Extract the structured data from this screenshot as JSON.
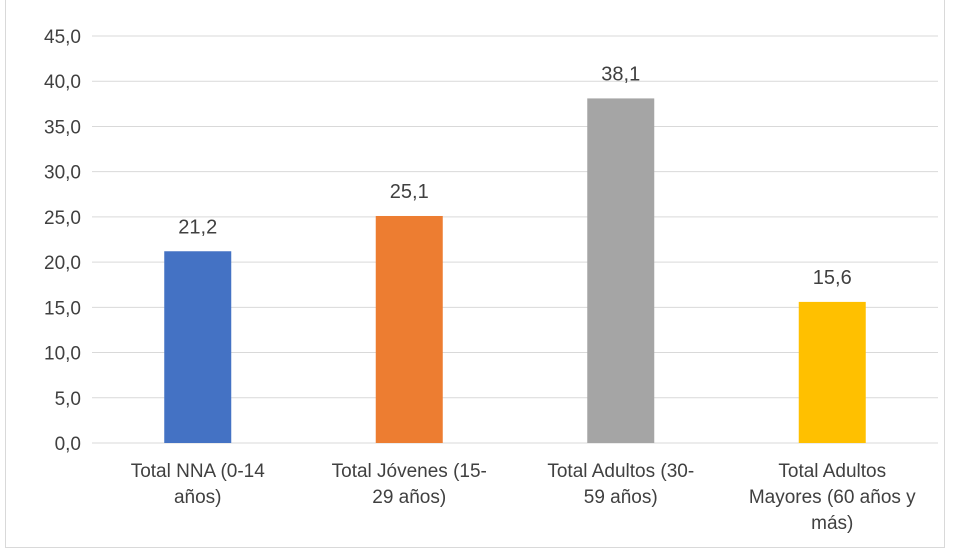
{
  "chart_data": {
    "type": "bar",
    "categories": [
      [
        "Total NNA (0-14",
        "años)"
      ],
      [
        "Total Jóvenes (15-",
        "29 años)"
      ],
      [
        "Total Adultos (30-",
        "59 años)"
      ],
      [
        "Total Adultos",
        "Mayores (60 años y",
        "más)"
      ]
    ],
    "values": [
      21.2,
      25.1,
      38.1,
      15.6
    ],
    "value_labels": [
      "21,2",
      "25,1",
      "38,1",
      "15,6"
    ],
    "colors": [
      "#4472c4",
      "#ed7d31",
      "#a5a5a5",
      "#ffc000"
    ],
    "ylim": [
      0,
      45
    ],
    "yticks": [
      "0,0",
      "5,0",
      "10,0",
      "15,0",
      "20,0",
      "25,0",
      "30,0",
      "35,0",
      "40,0",
      "45,0"
    ],
    "grid": true,
    "gridline_color": "#d9d9d9",
    "legend": "none",
    "title": "",
    "xlabel": "",
    "ylabel": ""
  }
}
